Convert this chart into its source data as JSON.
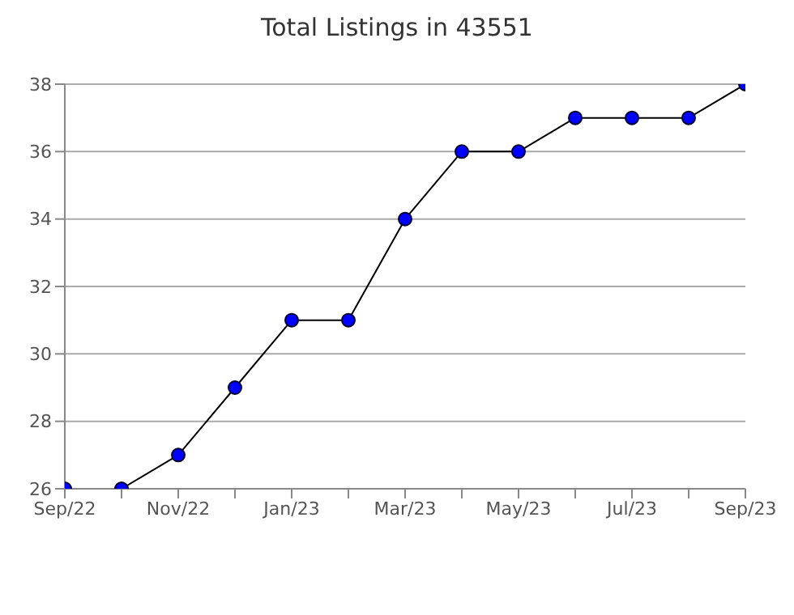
{
  "chart_data": {
    "type": "line",
    "title": "Total Listings in 43551",
    "categories": [
      "Sep/22",
      null,
      "Nov/22",
      null,
      "Jan/23",
      null,
      "Mar/23",
      null,
      "May/23",
      null,
      "Jul/23",
      null,
      "Sep/23"
    ],
    "series": [
      {
        "color": "#0000ff",
        "values": [
          26,
          26,
          27,
          29,
          31,
          31,
          34,
          36,
          36,
          37,
          37,
          37,
          38
        ]
      }
    ],
    "ylim": [
      26,
      38
    ],
    "yticks": [
      26,
      28,
      30,
      32,
      34,
      36,
      38
    ],
    "grid": "y",
    "marker": "circle",
    "line_style": "solid"
  }
}
